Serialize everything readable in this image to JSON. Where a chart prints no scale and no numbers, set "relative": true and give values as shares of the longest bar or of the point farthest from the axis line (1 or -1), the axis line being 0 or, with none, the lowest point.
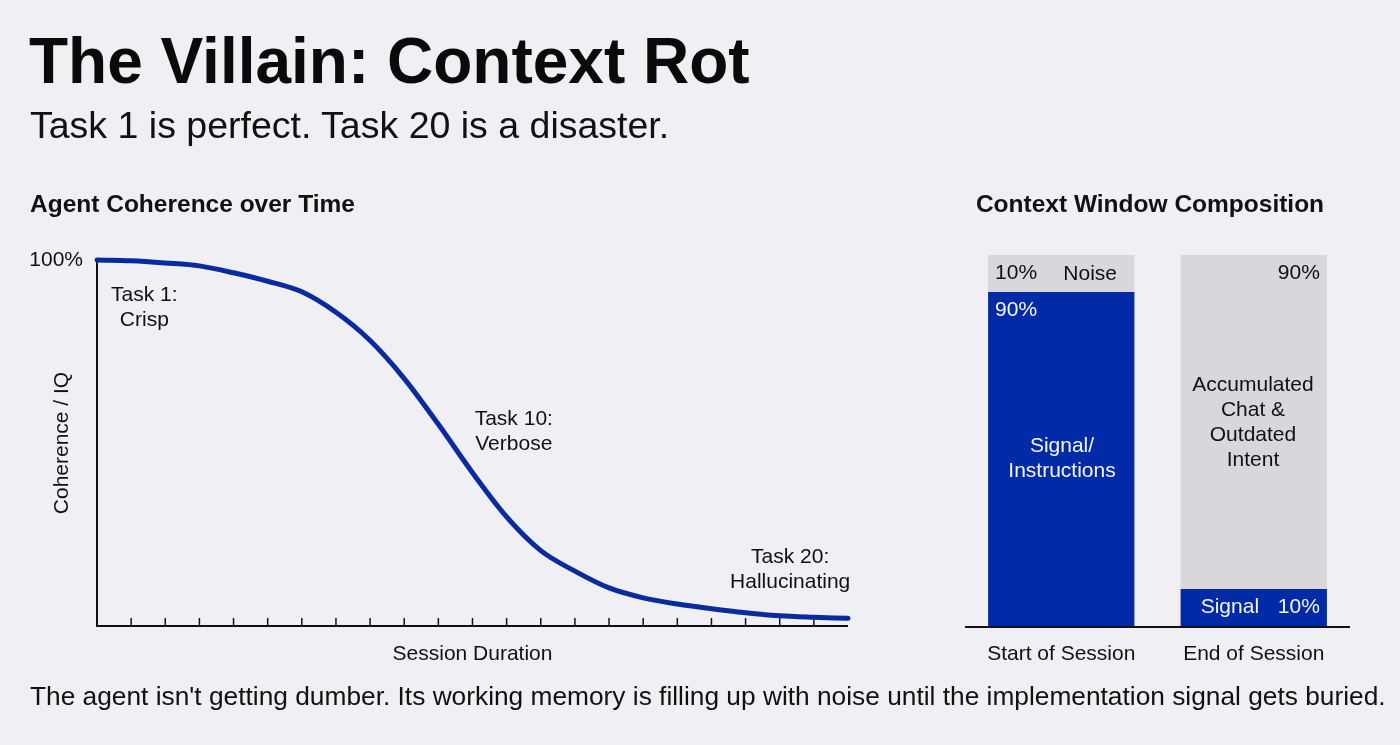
{
  "chart_data": [
    {
      "type": "other",
      "title": "The Villain: Context Rot",
      "subtitle": "Task 1 is perfect. Task 20 is a disaster.",
      "annotations": [
        "The agent isn't getting dumber. Its working memory is filling up with noise until the implementation signal gets buried."
      ]
    },
    {
      "type": "line",
      "title": "Agent Coherence over Time",
      "xlabel": "Session Duration",
      "ylabel": "Coherence / IQ",
      "relative": true,
      "categories": [
        null,
        null,
        null,
        null,
        null,
        null,
        null,
        null,
        null,
        null,
        null,
        null,
        null,
        null,
        null,
        null,
        null,
        null,
        null,
        null,
        null,
        null,
        null
      ],
      "values": [
        1,
        0.998,
        0.992,
        0.984,
        0.965,
        0.942,
        0.913,
        0.857,
        0.78,
        0.676,
        0.551,
        0.419,
        0.298,
        0.206,
        0.15,
        0.104,
        0.077,
        0.06,
        0.047,
        0.036,
        0.028,
        0.024,
        0.021
      ],
      "color": "#0a2b9f",
      "marker": "none",
      "annotations": [
        "100%",
        "Task 1:\nCrisp",
        "Task 10:\nVerbose",
        "Task 20:\nHallucinating"
      ]
    },
    {
      "type": "bar",
      "title": "Context Window Composition",
      "categories": [
        "Start of Session",
        "End of Session"
      ],
      "stacked": true,
      "series": [
        {
          "color": "#002aa6",
          "values": [
            90,
            10
          ],
          "value_labels": [
            "90%",
            "10%"
          ]
        },
        {
          "color": "#d8d8dc",
          "values": [
            10,
            90
          ],
          "value_labels": [
            "10%",
            "90%"
          ]
        }
      ],
      "annotations": [
        "Noise",
        "Signal/\nInstructions",
        "Accumulated\nChat &\nOutdated\nIntent",
        "Signal"
      ]
    }
  ]
}
